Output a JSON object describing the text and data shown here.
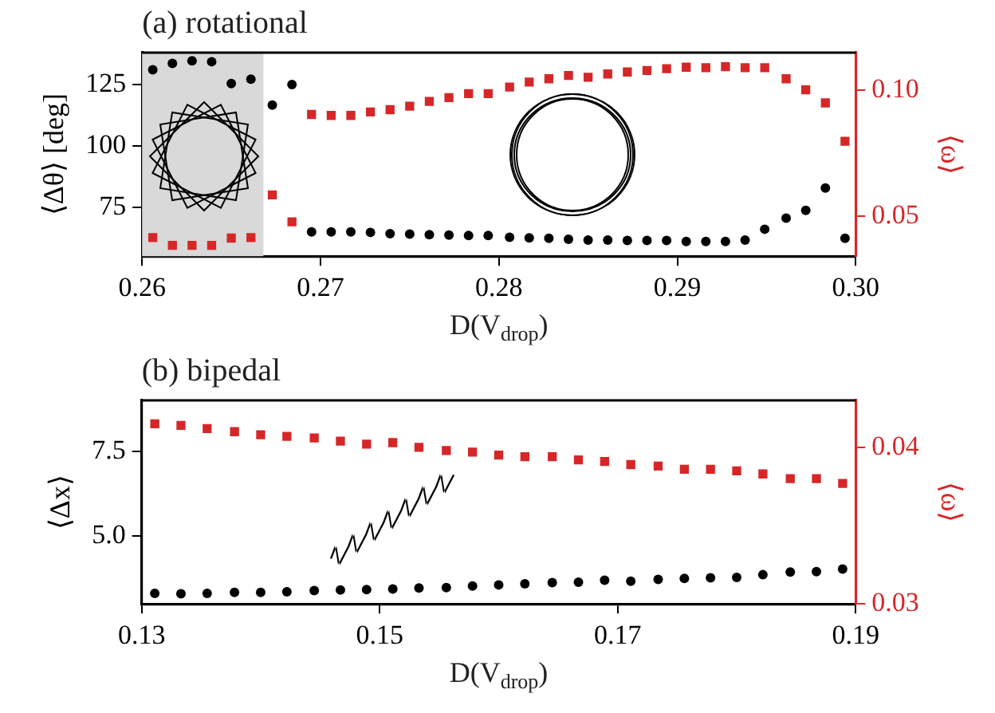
{
  "chart_data": [
    {
      "type": "scatter",
      "title": "(a) rotational",
      "xlabel": "D(V$_{drop}$)",
      "ylabel": "⟨Δθ⟩ [deg]",
      "y2label": "⟨ω⟩",
      "xlim": [
        0.26,
        0.3
      ],
      "xticks": [
        0.26,
        0.27,
        0.28,
        0.29,
        {
          "value": 0.3,
          "label": "0.30"
        }
      ],
      "ylim": [
        55,
        138
      ],
      "yticks": [
        75,
        100,
        125
      ],
      "y2lim": [
        0.034,
        0.115
      ],
      "y2ticks": [
        {
          "value": 0.05,
          "label": "0.05"
        },
        {
          "value": 0.1,
          "label": "0.10"
        }
      ],
      "grid": false,
      "bands": [
        {
          "axis": "x",
          "from": 0.26,
          "to": 0.2668,
          "color": "#d9d9d9"
        }
      ],
      "series": [
        {
          "color": "#000000",
          "marker": "circle",
          "x": [
            0.2606,
            0.2617,
            0.2628,
            0.2639,
            0.265,
            0.2661,
            0.2673,
            0.2684,
            0.2695,
            0.2706,
            0.2717,
            0.2728,
            0.2739,
            0.275,
            0.2761,
            0.2772,
            0.2783,
            0.2794,
            0.2806,
            0.2817,
            0.2828,
            0.2839,
            0.285,
            0.2861,
            0.2872,
            0.2883,
            0.2894,
            0.2905,
            0.2916,
            0.2927,
            0.2938,
            0.2949,
            0.2961,
            0.2972,
            0.2983,
            0.2994
          ],
          "values": [
            131.0,
            133.6,
            134.7,
            134.3,
            125.4,
            127.2,
            116.6,
            125.0,
            64.9,
            64.9,
            64.9,
            64.7,
            64.2,
            64.0,
            63.8,
            63.6,
            63.4,
            63.4,
            62.7,
            62.5,
            62.3,
            61.9,
            61.6,
            61.6,
            61.4,
            61.4,
            61.4,
            61.0,
            61.0,
            61.0,
            61.6,
            66.0,
            70.5,
            73.7,
            82.8,
            62.3
          ]
        },
        {
          "color": "#d62728",
          "marker": "square",
          "axis": "y2",
          "x": [
            0.2606,
            0.2617,
            0.2628,
            0.2639,
            0.265,
            0.2661,
            0.2673,
            0.2684,
            0.2695,
            0.2706,
            0.2717,
            0.2728,
            0.2739,
            0.275,
            0.2761,
            0.2772,
            0.2783,
            0.2794,
            0.2806,
            0.2817,
            0.2828,
            0.2839,
            0.285,
            0.2861,
            0.2872,
            0.2883,
            0.2894,
            0.2905,
            0.2916,
            0.2927,
            0.2938,
            0.2949,
            0.2961,
            0.2972,
            0.2983,
            0.2994
          ],
          "values": [
            0.0414,
            0.0383,
            0.0383,
            0.0383,
            0.0412,
            0.0414,
            0.0584,
            0.0477,
            0.0904,
            0.09,
            0.09,
            0.0914,
            0.0923,
            0.0937,
            0.0956,
            0.0971,
            0.0987,
            0.0987,
            0.1013,
            0.1033,
            0.1046,
            0.1059,
            0.1052,
            0.1065,
            0.1073,
            0.1079,
            0.1086,
            0.1092,
            0.109,
            0.1094,
            0.109,
            0.109,
            0.1046,
            0.1002,
            0.095,
            0.0797
          ]
        }
      ]
    },
    {
      "type": "scatter",
      "title": "(b) bipedal",
      "xlabel": "D(V$_{drop}$)",
      "ylabel": "⟨Δx⟩",
      "y2label": "⟨ω⟩",
      "xlim": [
        0.13,
        0.19
      ],
      "xticks": [
        0.13,
        0.15,
        0.17,
        0.19
      ],
      "ylim": [
        3.0,
        9.0
      ],
      "yticks": [
        {
          "value": 5,
          "label": "5.0"
        },
        7.5
      ],
      "y2lim": [
        0.03,
        0.043
      ],
      "y2ticks": [
        0.03,
        0.04
      ],
      "grid": false,
      "series": [
        {
          "color": "#000000",
          "marker": "circle",
          "x": [
            0.1311,
            0.1333,
            0.1355,
            0.1378,
            0.14,
            0.1422,
            0.1445,
            0.1467,
            0.1489,
            0.1511,
            0.1533,
            0.1556,
            0.1578,
            0.16,
            0.1622,
            0.1645,
            0.1667,
            0.1689,
            0.1711,
            0.1734,
            0.1756,
            0.1778,
            0.18,
            0.1822,
            0.1845,
            0.1867,
            0.1889
          ],
          "values": [
            3.31,
            3.3,
            3.31,
            3.34,
            3.34,
            3.36,
            3.39,
            3.41,
            3.42,
            3.44,
            3.47,
            3.48,
            3.53,
            3.56,
            3.59,
            3.63,
            3.64,
            3.7,
            3.67,
            3.72,
            3.75,
            3.77,
            3.78,
            3.86,
            3.94,
            3.95,
            4.03
          ]
        },
        {
          "color": "#d62728",
          "marker": "square",
          "axis": "y2",
          "x": [
            0.1311,
            0.1333,
            0.1355,
            0.1378,
            0.14,
            0.1422,
            0.1445,
            0.1467,
            0.1489,
            0.1511,
            0.1533,
            0.1556,
            0.1578,
            0.16,
            0.1622,
            0.1645,
            0.1667,
            0.1689,
            0.1711,
            0.1734,
            0.1756,
            0.1778,
            0.18,
            0.1822,
            0.1845,
            0.1867,
            0.1889
          ],
          "values": [
            0.0415,
            0.0414,
            0.0412,
            0.041,
            0.0408,
            0.0407,
            0.0406,
            0.0404,
            0.0402,
            0.0403,
            0.04,
            0.0398,
            0.0397,
            0.0395,
            0.0394,
            0.0394,
            0.0392,
            0.0391,
            0.0389,
            0.0388,
            0.0386,
            0.0386,
            0.0385,
            0.0383,
            0.038,
            0.038,
            0.0377
          ]
        }
      ]
    }
  ]
}
